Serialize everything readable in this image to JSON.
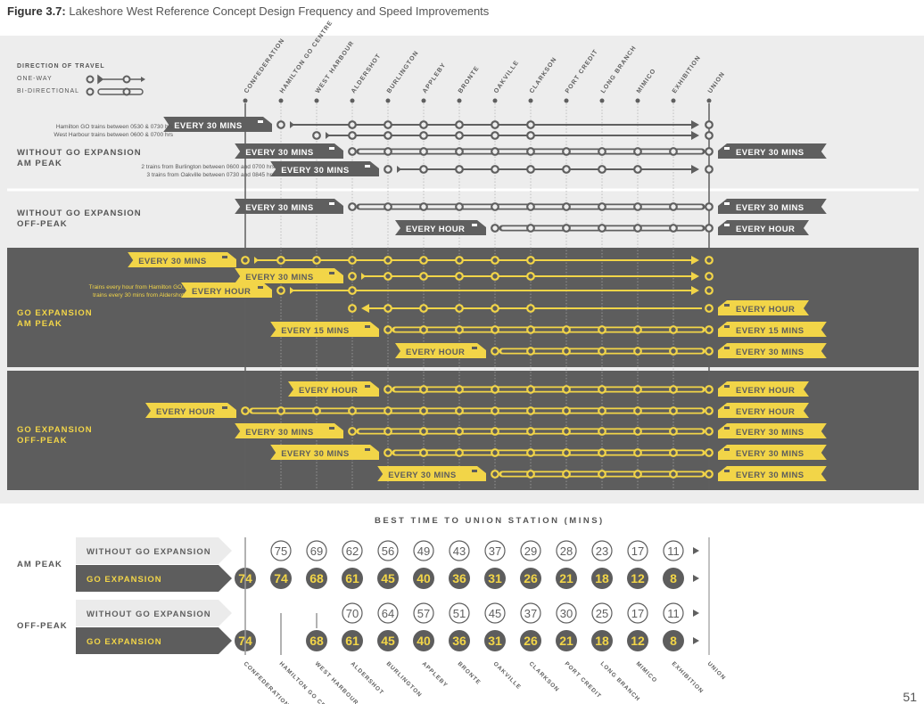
{
  "caption": {
    "prefix": "Figure 3.7:",
    "title": "Lakeshore West Reference Concept Design Frequency and Speed Improvements"
  },
  "legend": {
    "title": "DIRECTION OF TRAVEL",
    "one_way": "ONE-WAY",
    "bi": "BI-DIRECTIONAL"
  },
  "stations": [
    "CONFEDERATION",
    "HAMILTON GO CENTRE",
    "WEST HARBOUR",
    "ALDERSHOT",
    "BURLINGTON",
    "APPLEBY",
    "BRONTE",
    "OAKVILLE",
    "CLARKSON",
    "PORT CREDIT",
    "LONG BRANCH",
    "MIMICO",
    "EXHIBITION",
    "UNION"
  ],
  "sections": {
    "wo_am": "WITHOUT GO EXPANSION\nAM PEAK",
    "wo_off": "WITHOUT GO EXPANSION\nOFF-PEAK",
    "go_am": "GO EXPANSION\nAM PEAK",
    "go_off": "GO EXPANSION\nOFF-PEAK"
  },
  "notes": {
    "n1a": "Hamilton GO trains between 0530 & 0730 hrs",
    "n1b": "West Harbour trains between 0600 & 0700 hrs",
    "n2a": "2 trains from Burlington between 0600 and 0700 hrs",
    "n2b": "3 trains from Oakville between 0730 and 0845 hrs",
    "n3a": "Trains every hour from Hamilton GO,",
    "n3b": "trains every 30 mins from Aldershot"
  },
  "services": [
    {
      "from": 1,
      "to": 13,
      "type": "one",
      "left": "EVERY 30 MINS",
      "theme": "light",
      "circles": [
        3,
        4,
        5,
        6,
        7,
        8
      ]
    },
    {
      "from": 2,
      "to": 13,
      "type": "one",
      "left": null,
      "theme": "light",
      "circles": [
        3,
        4,
        5,
        6,
        7,
        8
      ]
    },
    {
      "from": 3,
      "to": 13,
      "type": "bi",
      "left": "EVERY 30 MINS",
      "right": "EVERY 30 MINS",
      "theme": "light"
    },
    {
      "from": 4,
      "to": 13,
      "type": "one",
      "left": "EVERY 30 MINS",
      "theme": "light",
      "circles": [
        5,
        6,
        7,
        8,
        9,
        10,
        11
      ]
    },
    {
      "from": 3,
      "to": 13,
      "type": "bi",
      "left": "EVERY 30 MINS",
      "right": "EVERY 30 MINS",
      "theme": "light"
    },
    {
      "from": 7,
      "to": 13,
      "type": "bi",
      "left": "EVERY HOUR",
      "right": "EVERY HOUR",
      "theme": "light"
    },
    {
      "from": 0,
      "to": 13,
      "type": "one",
      "left": "EVERY 30 MINS",
      "theme": "dark",
      "circles": [
        1,
        2,
        3,
        4,
        5,
        6,
        7,
        8
      ]
    },
    {
      "from": 3,
      "to": 13,
      "type": "one",
      "left": "EVERY 30 MINS",
      "theme": "dark",
      "circles": [
        4,
        5,
        6,
        7,
        8
      ]
    },
    {
      "from": 1,
      "to": 13,
      "type": "one",
      "left": "EVERY HOUR",
      "theme": "dark",
      "circles": [
        3
      ]
    },
    {
      "from": 3,
      "to": 13,
      "type": "rev",
      "right": "EVERY HOUR",
      "theme": "dark",
      "circles": [
        4,
        5,
        6,
        7,
        8
      ]
    },
    {
      "from": 4,
      "to": 13,
      "type": "bi",
      "left": "EVERY 15 MINS",
      "right": "EVERY 15 MINS",
      "theme": "dark"
    },
    {
      "from": 7,
      "to": 13,
      "type": "bi",
      "left": "EVERY HOUR",
      "right": "EVERY 30 MINS",
      "theme": "dark"
    },
    {
      "from": 4,
      "to": 13,
      "type": "bi",
      "left": "EVERY HOUR",
      "right": "EVERY HOUR",
      "theme": "dark"
    },
    {
      "from": 0,
      "to": 13,
      "type": "bi",
      "left": "EVERY HOUR",
      "right": "EVERY HOUR",
      "theme": "dark"
    },
    {
      "from": 3,
      "to": 13,
      "type": "bi",
      "left": "EVERY 30 MINS",
      "right": "EVERY 30 MINS",
      "theme": "dark"
    },
    {
      "from": 4,
      "to": 13,
      "type": "bi",
      "left": "EVERY 30 MINS",
      "right": "EVERY 30 MINS",
      "theme": "dark"
    },
    {
      "from": 7,
      "to": 13,
      "type": "bi",
      "left": "EVERY 30 MINS",
      "right": "EVERY 30 MINS",
      "theme": "dark"
    }
  ],
  "times": {
    "title": "BEST TIME TO UNION STATION (MINS)",
    "am": "AM PEAK",
    "off": "OFF-PEAK",
    "without": "WITHOUT GO EXPANSION",
    "go": "GO EXPANSION",
    "rows": [
      {
        "kind": "without",
        "values": [
          null,
          75,
          69,
          62,
          56,
          49,
          43,
          37,
          29,
          28,
          23,
          17,
          11
        ]
      },
      {
        "kind": "go",
        "values": [
          74,
          74,
          68,
          61,
          45,
          40,
          36,
          31,
          26,
          21,
          18,
          12,
          8
        ]
      },
      {
        "kind": "without",
        "values": [
          null,
          null,
          null,
          70,
          64,
          57,
          51,
          45,
          37,
          30,
          25,
          17,
          11
        ]
      },
      {
        "kind": "go",
        "values": [
          74,
          null,
          68,
          61,
          45,
          40,
          36,
          31,
          26,
          21,
          18,
          12,
          8
        ]
      }
    ]
  },
  "colors": {
    "gray": "#5f5f5f",
    "yellow": "#f2d548",
    "light_bg": "#ededed",
    "dark_bg": "#5d5d5d"
  },
  "page_number": "51"
}
